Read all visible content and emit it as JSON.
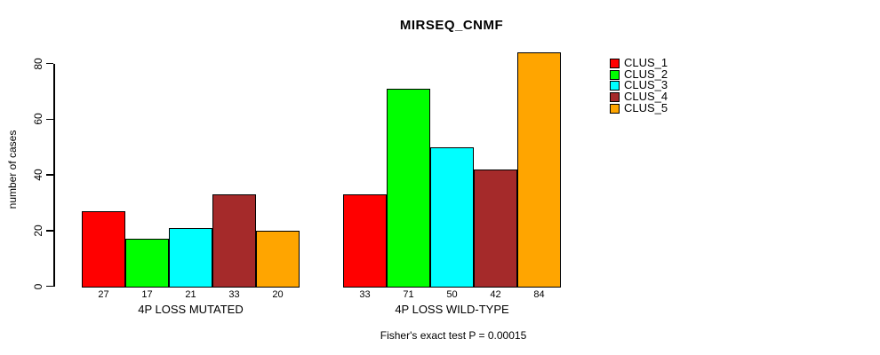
{
  "chart_data": {
    "type": "bar",
    "title": "MIRSEQ_CNMF",
    "ylabel": "number of cases",
    "xlabel": "",
    "yticks": [
      0,
      20,
      40,
      60,
      80
    ],
    "ylim": [
      0,
      84
    ],
    "grid": false,
    "legend_position": "right-top",
    "bar_value_labels": true,
    "categories": [
      "4P LOSS MUTATED",
      "4P LOSS WILD-TYPE"
    ],
    "series": [
      {
        "name": "CLUS_1",
        "color": "#FF0000",
        "values": [
          27,
          33
        ]
      },
      {
        "name": "CLUS_2",
        "color": "#00FF00",
        "values": [
          17,
          71
        ]
      },
      {
        "name": "CLUS_3",
        "color": "#00FFFF",
        "values": [
          21,
          50
        ]
      },
      {
        "name": "CLUS_4",
        "color": "#A52A2A",
        "values": [
          33,
          42
        ]
      },
      {
        "name": "CLUS_5",
        "color": "#FFA500",
        "values": [
          20,
          84
        ]
      }
    ],
    "annotation": "Fisher's exact test P = 0.00015"
  }
}
